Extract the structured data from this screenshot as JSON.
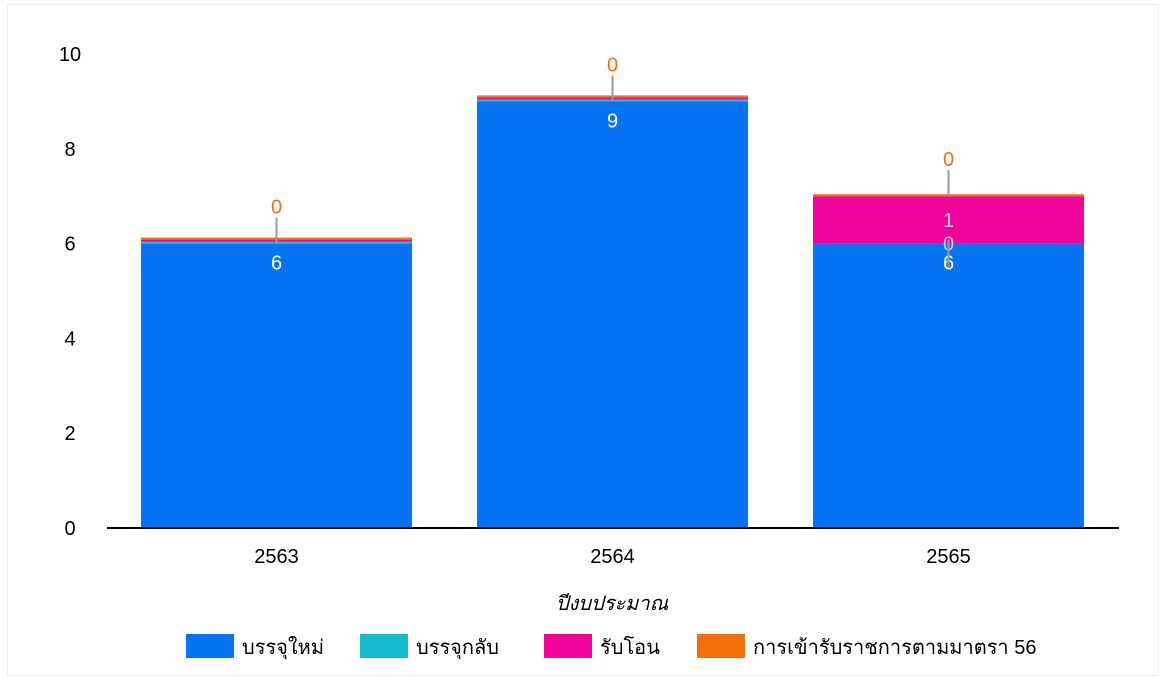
{
  "chart_data": {
    "type": "bar",
    "stacked": true,
    "categories": [
      "2563",
      "2564",
      "2565"
    ],
    "series": [
      {
        "name": "บรรจุใหม่",
        "color": "#0873F2",
        "values": [
          6,
          9,
          6
        ],
        "labels": [
          "6",
          "9",
          "6"
        ]
      },
      {
        "name": "บรรจุกลับ",
        "color": "#13BCCF",
        "values": [
          0,
          0,
          0
        ],
        "labels": [
          "",
          "",
          "0"
        ]
      },
      {
        "name": "รับโอน",
        "color": "#F0039B",
        "values": [
          0,
          0,
          1
        ],
        "labels": [
          "",
          "",
          "1"
        ]
      },
      {
        "name": "การเข้ารับราชการตามมาตรา 56",
        "color": "#F6700A",
        "values": [
          0,
          0,
          0
        ],
        "labels": [
          "0",
          "0",
          "0"
        ]
      }
    ],
    "xlabel": "ปีงบประมาณ",
    "ylabel": "",
    "ylim": [
      0,
      10
    ],
    "yticks": [
      0,
      2,
      4,
      6,
      8,
      10
    ],
    "grid": false,
    "legend": "bottom"
  }
}
